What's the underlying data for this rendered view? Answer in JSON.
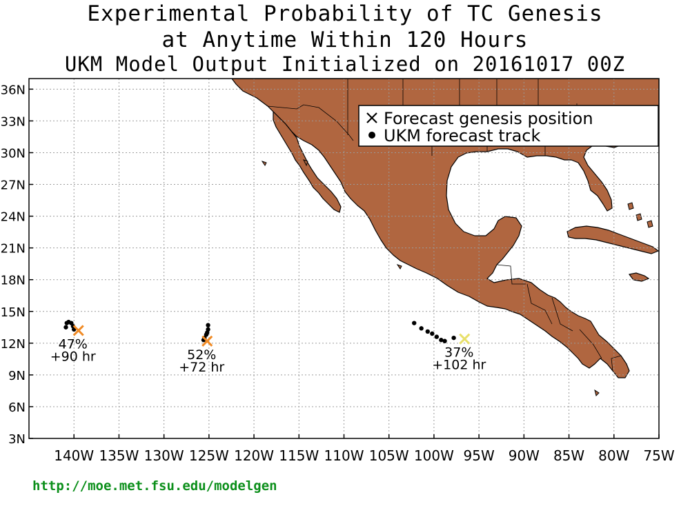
{
  "title": {
    "line1": "Experimental Probability of TC Genesis",
    "line2": "at Anytime Within 120 Hours",
    "line3": "UKM Model Output Initialized on 20161017 00Z"
  },
  "map": {
    "lon_range": [
      -145,
      -75
    ],
    "lat_range": [
      3,
      37
    ],
    "land_color": "#b06640",
    "grid": true,
    "y_ticks": [
      "3N",
      "6N",
      "9N",
      "12N",
      "15N",
      "18N",
      "21N",
      "24N",
      "27N",
      "30N",
      "33N",
      "36N"
    ],
    "x_ticks": [
      "140W",
      "135W",
      "130W",
      "125W",
      "120W",
      "115W",
      "110W",
      "105W",
      "100W",
      "95W",
      "90W",
      "85W",
      "80W",
      "75W"
    ]
  },
  "legend": {
    "genesis_label": "Forecast genesis position",
    "track_label": "UKM forecast track"
  },
  "systems": [
    {
      "probability": "47%",
      "lead_time": "+90 hr",
      "genesis": {
        "lon": -139.5,
        "lat": 13.2
      },
      "marker_color": "#f08a24",
      "track": [
        [
          -140.9,
          13.5
        ],
        [
          -140.8,
          13.9
        ],
        [
          -140.6,
          14.0
        ],
        [
          -140.3,
          13.9
        ],
        [
          -140.1,
          13.6
        ],
        [
          -140.0,
          13.3
        ]
      ]
    },
    {
      "probability": "52%",
      "lead_time": "+72 hr",
      "genesis": {
        "lon": -125.2,
        "lat": 12.2
      },
      "marker_color": "#f08a24",
      "track": [
        [
          -125.1,
          13.7
        ],
        [
          -125.1,
          13.3
        ],
        [
          -125.2,
          13.0
        ],
        [
          -125.3,
          12.8
        ],
        [
          -125.5,
          12.5
        ],
        [
          -125.6,
          12.3
        ]
      ]
    },
    {
      "probability": "37%",
      "lead_time": "+102 hr",
      "genesis": {
        "lon": -96.6,
        "lat": 12.4
      },
      "marker_color": "#e8e06a",
      "track": [
        [
          -102.2,
          13.9
        ],
        [
          -101.4,
          13.4
        ],
        [
          -100.7,
          13.1
        ],
        [
          -100.2,
          12.9
        ],
        [
          -99.7,
          12.6
        ],
        [
          -99.2,
          12.3
        ],
        [
          -98.8,
          12.2
        ],
        [
          -97.8,
          12.5
        ]
      ]
    }
  ],
  "footer": {
    "url": "http://moe.met.fsu.edu/modelgen"
  }
}
